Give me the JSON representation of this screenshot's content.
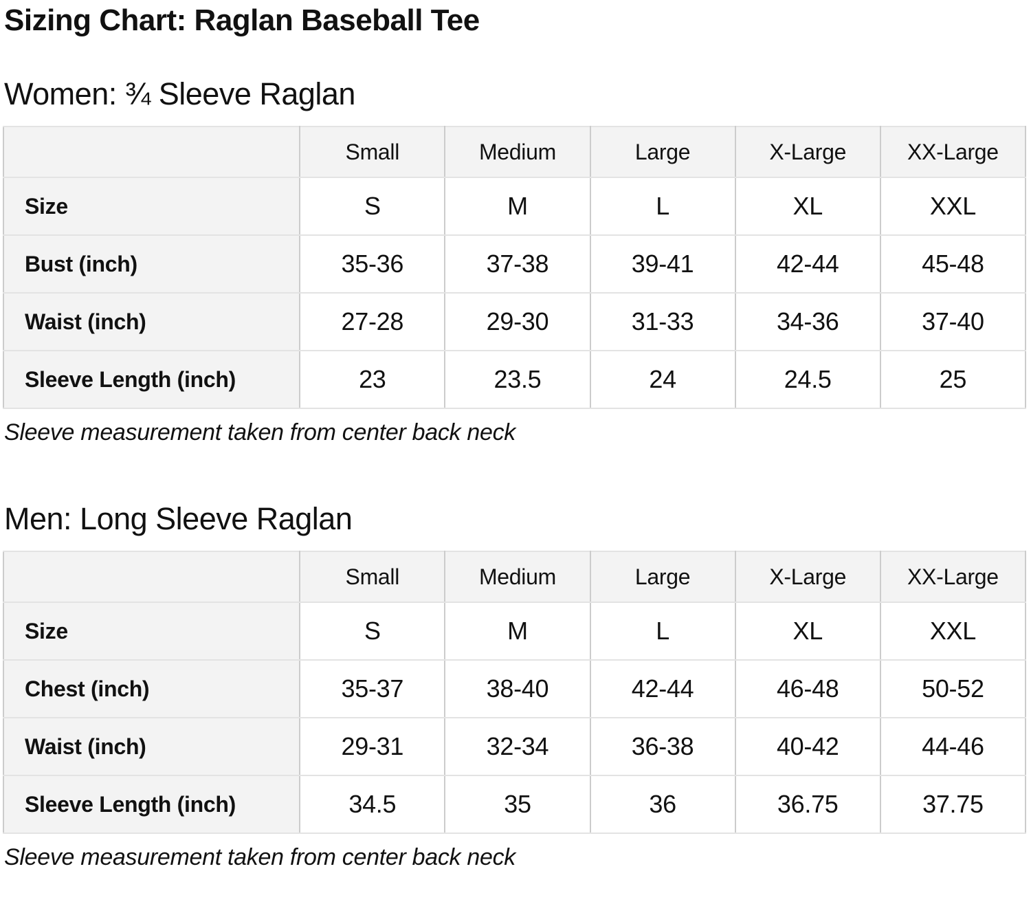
{
  "page": {
    "title": "Sizing Chart: Raglan Baseball Tee"
  },
  "colors": {
    "text": "#111111",
    "header_bg": "#f3f3f3",
    "border_h": "#e3e3e3",
    "border_v": "#cccccc",
    "bg": "#ffffff"
  },
  "sections": [
    {
      "id": "women",
      "heading": "Women: ¾ Sleeve Raglan",
      "footnote": "Sleeve measurement taken from center back neck",
      "table": {
        "column_headers": [
          "",
          "Small",
          "Medium",
          "Large",
          "X-Large",
          "XX-Large"
        ],
        "rows": [
          {
            "label": "Size",
            "values": [
              "S",
              "M",
              "L",
              "XL",
              "XXL"
            ]
          },
          {
            "label": "Bust (inch)",
            "values": [
              "35-36",
              "37-38",
              "39-41",
              "42-44",
              "45-48"
            ]
          },
          {
            "label": "Waist (inch)",
            "values": [
              "27-28",
              "29-30",
              "31-33",
              "34-36",
              "37-40"
            ]
          },
          {
            "label": "Sleeve Length (inch)",
            "values": [
              "23",
              "23.5",
              "24",
              "24.5",
              "25"
            ]
          }
        ]
      }
    },
    {
      "id": "men",
      "heading": "Men: Long Sleeve Raglan",
      "footnote": "Sleeve measurement taken from center back neck",
      "table": {
        "column_headers": [
          "",
          "Small",
          "Medium",
          "Large",
          "X-Large",
          "XX-Large"
        ],
        "rows": [
          {
            "label": "Size",
            "values": [
              "S",
              "M",
              "L",
              "XL",
              "XXL"
            ]
          },
          {
            "label": "Chest (inch)",
            "values": [
              "35-37",
              "38-40",
              "42-44",
              "46-48",
              "50-52"
            ]
          },
          {
            "label": "Waist (inch)",
            "values": [
              "29-31",
              "32-34",
              "36-38",
              "40-42",
              "44-46"
            ]
          },
          {
            "label": "Sleeve Length (inch)",
            "values": [
              "34.5",
              "35",
              "36",
              "36.75",
              "37.75"
            ]
          }
        ]
      }
    }
  ]
}
